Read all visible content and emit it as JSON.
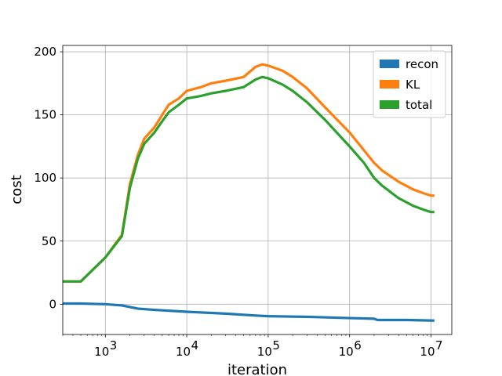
{
  "chart_data": {
    "type": "line",
    "title": "",
    "xlabel": "iteration",
    "ylabel": "cost",
    "xscale": "log",
    "xlim": [
      300,
      18000000
    ],
    "ylim": [
      -24,
      205
    ],
    "grid": true,
    "legend_position": "top-right",
    "x_ticks": [
      {
        "value": 1000,
        "base": "10",
        "exp": "3"
      },
      {
        "value": 10000,
        "base": "10",
        "exp": "4"
      },
      {
        "value": 100000,
        "base": "10",
        "exp": "5"
      },
      {
        "value": 1000000,
        "base": "10",
        "exp": "6"
      },
      {
        "value": 10000000,
        "base": "10",
        "exp": "7"
      }
    ],
    "y_ticks": [
      {
        "value": 0,
        "label": "0"
      },
      {
        "value": 50,
        "label": "50"
      },
      {
        "value": 100,
        "label": "100"
      },
      {
        "value": 150,
        "label": "150"
      },
      {
        "value": 200,
        "label": "200"
      }
    ],
    "series": [
      {
        "name": "recon",
        "color": "#1f77b4",
        "x": [
          300,
          500,
          1000,
          1600,
          2500,
          4000,
          10000,
          30000,
          70000,
          100000,
          300000,
          1000000,
          2000000,
          2200000,
          5000000,
          11000000
        ],
        "y": [
          0.5,
          0.5,
          0,
          -1,
          -3.5,
          -4.5,
          -6,
          -7.5,
          -9,
          -9.5,
          -10,
          -11,
          -11.5,
          -12.5,
          -12.5,
          -13
        ]
      },
      {
        "name": "KL",
        "color": "#ff7f0e",
        "x": [
          300,
          500,
          1000,
          1600,
          2000,
          2500,
          3000,
          4000,
          5000,
          6000,
          8000,
          10000,
          15000,
          20000,
          30000,
          50000,
          70000,
          85000,
          100000,
          150000,
          200000,
          300000,
          500000,
          1000000,
          1500000,
          2000000,
          2500000,
          4000000,
          6000000,
          8000000,
          10000000,
          11000000
        ],
        "y": [
          18,
          18,
          37,
          55,
          95,
          118,
          131,
          140,
          150,
          158,
          163,
          169,
          172,
          175,
          177,
          180,
          188,
          190,
          189,
          185,
          180,
          171,
          156,
          136,
          122,
          112,
          106,
          97,
          91,
          88,
          86,
          86
        ]
      },
      {
        "name": "total",
        "color": "#2ca02c",
        "x": [
          300,
          500,
          1000,
          1600,
          2000,
          2500,
          3000,
          4000,
          5000,
          6000,
          8000,
          10000,
          15000,
          20000,
          30000,
          50000,
          70000,
          85000,
          100000,
          150000,
          200000,
          300000,
          500000,
          1000000,
          1500000,
          2000000,
          2500000,
          4000000,
          6000000,
          8000000,
          10000000,
          11000000
        ],
        "y": [
          18,
          18,
          37,
          54,
          92,
          115,
          127,
          136,
          145,
          152,
          158,
          163,
          165,
          167,
          169,
          172,
          178,
          180,
          179,
          174,
          169,
          160,
          146,
          125,
          112,
          100,
          94,
          84,
          78,
          75,
          73,
          73
        ]
      }
    ]
  }
}
